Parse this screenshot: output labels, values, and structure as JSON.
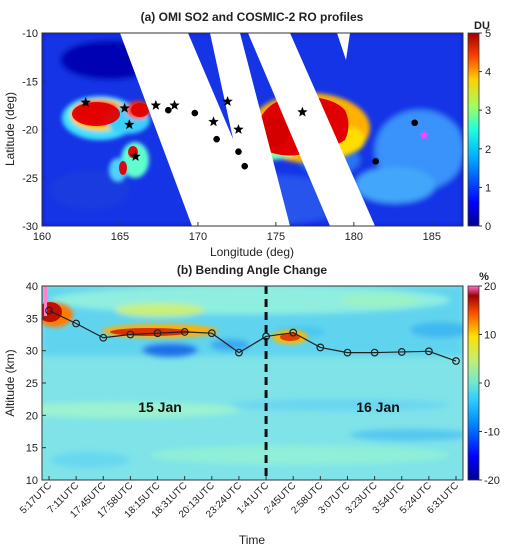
{
  "chart_data": [
    {
      "type": "heatmap",
      "title": "(a) OMI SO2 and COSMIC-2 RO profiles",
      "xlabel": "Longitude (deg)",
      "ylabel": "Latitude (deg)",
      "xlim": [
        160,
        187
      ],
      "ylim": [
        -30,
        -10
      ],
      "xticks": [
        160,
        165,
        170,
        175,
        180,
        185
      ],
      "yticks": [
        -10,
        -15,
        -20,
        -25,
        -30
      ],
      "colorbar": {
        "label": "DU",
        "range": [
          0,
          5
        ],
        "ticks": [
          0,
          1,
          2,
          3,
          4,
          5
        ]
      },
      "grid": false,
      "series": [
        {
          "marker": "star",
          "color": "#000000",
          "points": [
            [
              162.8,
              -17.2
            ],
            [
              165.3,
              -17.8
            ],
            [
              165.6,
              -19.5
            ],
            [
              166.0,
              -22.8
            ],
            [
              167.3,
              -17.5
            ],
            [
              168.5,
              -17.5
            ],
            [
              171.0,
              -19.2
            ],
            [
              171.9,
              -17.1
            ],
            [
              172.6,
              -20.0
            ],
            [
              176.7,
              -18.2
            ]
          ]
        },
        {
          "marker": "circle",
          "color": "#000000",
          "points": [
            [
              168.1,
              -18.0
            ],
            [
              169.8,
              -18.3
            ],
            [
              171.2,
              -21.0
            ],
            [
              172.6,
              -22.3
            ],
            [
              173.0,
              -23.8
            ],
            [
              181.4,
              -23.3
            ],
            [
              183.9,
              -19.3
            ]
          ]
        },
        {
          "marker": "star",
          "color": "#ff44ff",
          "points": [
            [
              184.5,
              -20.6
            ]
          ]
        }
      ]
    },
    {
      "type": "heatmap",
      "title": "(b) Bending Angle Change",
      "xlabel": "Time",
      "ylabel": "Altitude (km)",
      "categories": [
        "5:17UTC",
        "7:11UTC",
        "17:45UTC",
        "17:58UTC",
        "18:15UTC",
        "18:31UTC",
        "20:13UTC",
        "23:24UTC",
        "1:41UTC",
        "2:45UTC",
        "2:58UTC",
        "3:07UTC",
        "3:23UTC",
        "3:54UTC",
        "5:24UTC",
        "6:31UTC"
      ],
      "ylim": [
        10,
        40
      ],
      "yticks": [
        10,
        15,
        20,
        25,
        30,
        35,
        40
      ],
      "colorbar": {
        "label": "%",
        "range": [
          -20,
          20
        ],
        "ticks": [
          -20,
          -10,
          0,
          10,
          20
        ]
      },
      "grid": false,
      "series": [
        {
          "name": "",
          "values": [
            36.2,
            34.2,
            32.0,
            32.5,
            32.7,
            32.9,
            32.7,
            29.7,
            32.2,
            32.8,
            30.5,
            29.7,
            29.7,
            29.8,
            29.9,
            28.4
          ]
        }
      ],
      "annotations": [
        "15 Jan",
        "16 Jan"
      ],
      "divider_category": "1:41UTC"
    }
  ]
}
